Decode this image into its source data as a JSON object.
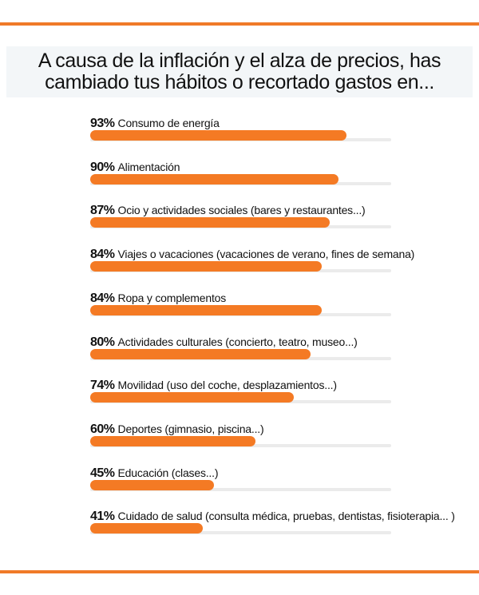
{
  "chart_data": {
    "type": "bar",
    "orientation": "horizontal",
    "title": "A causa de la inflación y el alza de precios, has cambiado tus hábitos o recortado gastos en...",
    "categories": [
      "Consumo de energía",
      "Alimentación",
      "Ocio y actividades sociales (bares y restaurantes...)",
      "Viajes o vacaciones (vacaciones de verano, fines de semana)",
      "Ropa y complementos",
      "Actividades culturales (concierto, teatro, museo...)",
      "Movilidad (uso del coche, desplazamientos...)",
      "Deportes (gimnasio, piscina...)",
      "Educación (clases...)",
      "Cuidado de salud (consulta médica, pruebas, dentistas, fisioterapia... )"
    ],
    "values": [
      93,
      90,
      87,
      84,
      84,
      80,
      74,
      60,
      45,
      41
    ],
    "value_labels": [
      "93%",
      "90%",
      "87%",
      "84%",
      "84%",
      "80%",
      "74%",
      "60%",
      "45%",
      "41%"
    ],
    "xlim": [
      0,
      100
    ],
    "grid": false,
    "colors": {
      "bar": "#f47a24",
      "track": "#ebebeb",
      "rule": "#f07a28"
    }
  }
}
